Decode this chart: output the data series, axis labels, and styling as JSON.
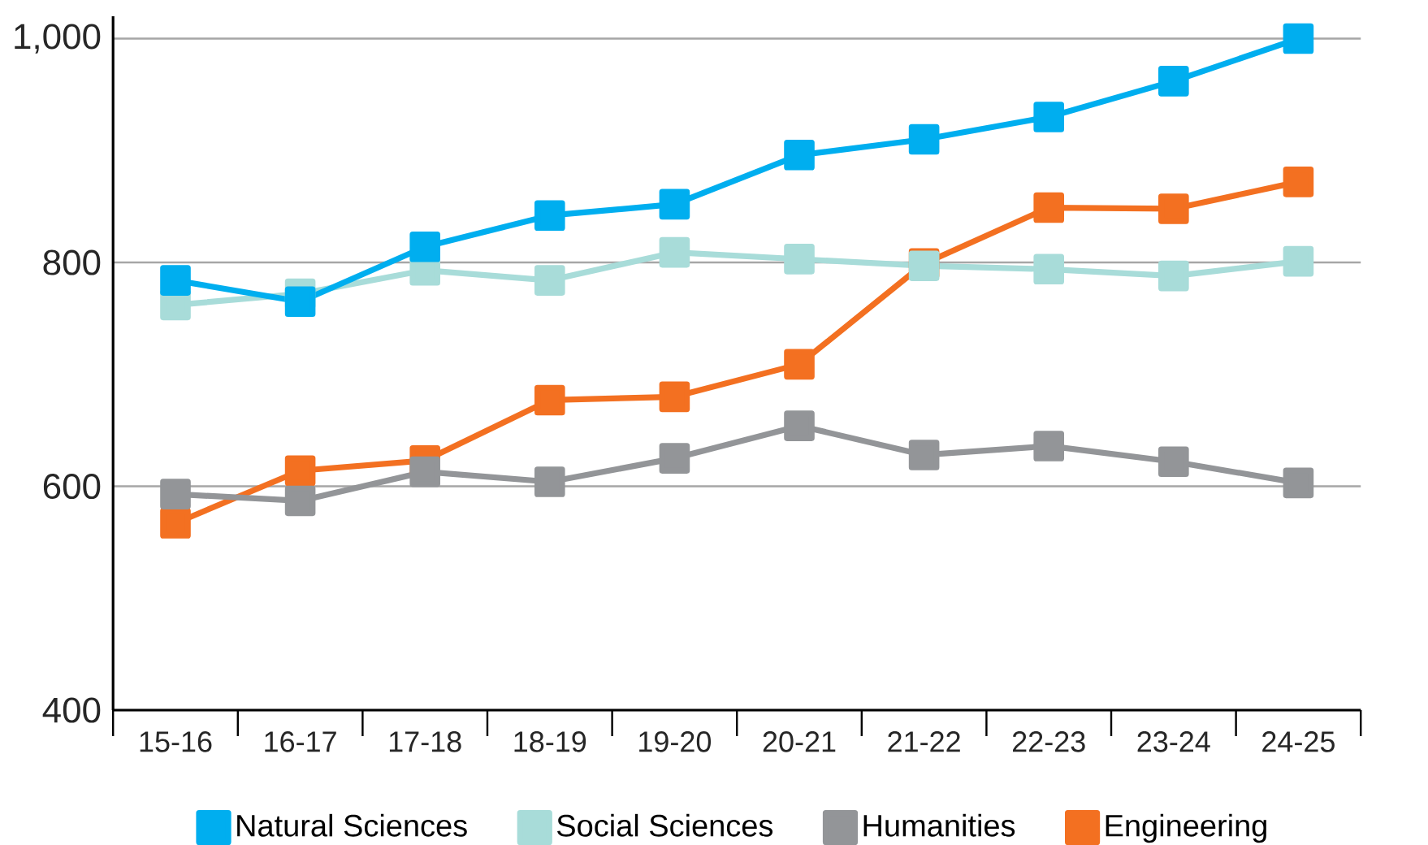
{
  "chart_data": {
    "type": "line",
    "categories": [
      "15-16",
      "16-17",
      "17-18",
      "18-19",
      "19-20",
      "20-21",
      "21-22",
      "22-23",
      "23-24",
      "24-25"
    ],
    "series": [
      {
        "name": "Natural Sciences",
        "color": "#00aeef",
        "values": [
          784,
          765,
          814,
          842,
          852,
          896,
          910,
          930,
          962,
          1000
        ]
      },
      {
        "name": "Social Sciences",
        "color": "#a8dcd9",
        "values": [
          762,
          772,
          793,
          784,
          809,
          803,
          797,
          794,
          788,
          801
        ]
      },
      {
        "name": "Humanities",
        "color": "#939598",
        "values": [
          593,
          587,
          613,
          604,
          625,
          654,
          628,
          636,
          622,
          603
        ]
      },
      {
        "name": "Engineering",
        "color": "#f37021",
        "values": [
          567,
          614,
          623,
          677,
          680,
          709,
          799,
          849,
          848,
          872
        ]
      }
    ],
    "ylim": [
      400,
      1020
    ],
    "yticks": [
      400,
      600,
      800,
      {
        "value": 1000,
        "label": "1,000"
      }
    ],
    "grid": "y",
    "legend": "bottom",
    "marker": "square",
    "line_style": "solid"
  }
}
